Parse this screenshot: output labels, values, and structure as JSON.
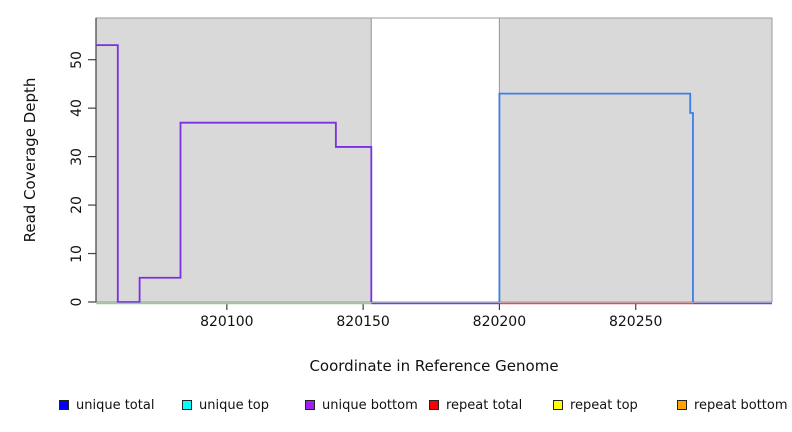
{
  "chart_data": {
    "type": "line",
    "title": "",
    "xlabel": "Coordinate in Reference Genome",
    "ylabel": "Read Coverage Depth",
    "xlim": [
      820052,
      820300
    ],
    "ylim": [
      0,
      58.6
    ],
    "x_ticks": [
      820100,
      820150,
      820200,
      820250
    ],
    "y_ticks": [
      0,
      10,
      20,
      30,
      40,
      50
    ],
    "grid": false,
    "legend_position": "bottom",
    "background_regions": [
      {
        "name": "gray-left",
        "x0": 820052,
        "x1": 820153,
        "fill": "#d9d9d9"
      },
      {
        "name": "white-gap",
        "x0": 820153,
        "x1": 820200,
        "fill": "#ffffff"
      },
      {
        "name": "gray-right",
        "x0": 820200,
        "x1": 820300,
        "fill": "#d9d9d9"
      }
    ],
    "series": [
      {
        "name": "unique-bottom-steps",
        "color": "#7b2fe2",
        "points": [
          [
            820052,
            53
          ],
          [
            820060,
            53
          ],
          [
            820060,
            0
          ],
          [
            820068,
            0
          ],
          [
            820068,
            5
          ],
          [
            820083,
            5
          ],
          [
            820083,
            37
          ],
          [
            820140,
            37
          ],
          [
            820140,
            32
          ],
          [
            820153,
            32
          ],
          [
            820153,
            0
          ]
        ]
      },
      {
        "name": "unique-total-steps",
        "color": "#3d7de9",
        "points": [
          [
            820200,
            0
          ],
          [
            820200,
            43
          ],
          [
            820270,
            43
          ],
          [
            820270,
            39
          ],
          [
            820271,
            39
          ],
          [
            820271,
            0
          ]
        ]
      },
      {
        "name": "baseline-green-left",
        "color": "#85da85",
        "points": [
          [
            820052,
            0
          ],
          [
            820153,
            0
          ]
        ]
      },
      {
        "name": "baseline-violet-middle",
        "color": "#5b4be6",
        "points": [
          [
            820153,
            0
          ],
          [
            820200,
            0
          ]
        ]
      },
      {
        "name": "baseline-red-right",
        "color": "#e14b5f",
        "points": [
          [
            820200,
            0
          ],
          [
            820271,
            0
          ]
        ]
      },
      {
        "name": "baseline-violet-end",
        "color": "#5b4be6",
        "points": [
          [
            820271,
            0
          ],
          [
            820300,
            0
          ]
        ]
      }
    ],
    "legend": [
      {
        "label": "unique total",
        "color": "#0000ff"
      },
      {
        "label": "unique top",
        "color": "#00ffff"
      },
      {
        "label": "unique bottom",
        "color": "#a020f0"
      },
      {
        "label": "repeat total",
        "color": "#ff0000"
      },
      {
        "label": "repeat top",
        "color": "#ffff00"
      },
      {
        "label": "repeat bottom",
        "color": "#ffa500"
      }
    ],
    "axis_color": "#404040",
    "region_border_color": "#9a9a9a"
  }
}
